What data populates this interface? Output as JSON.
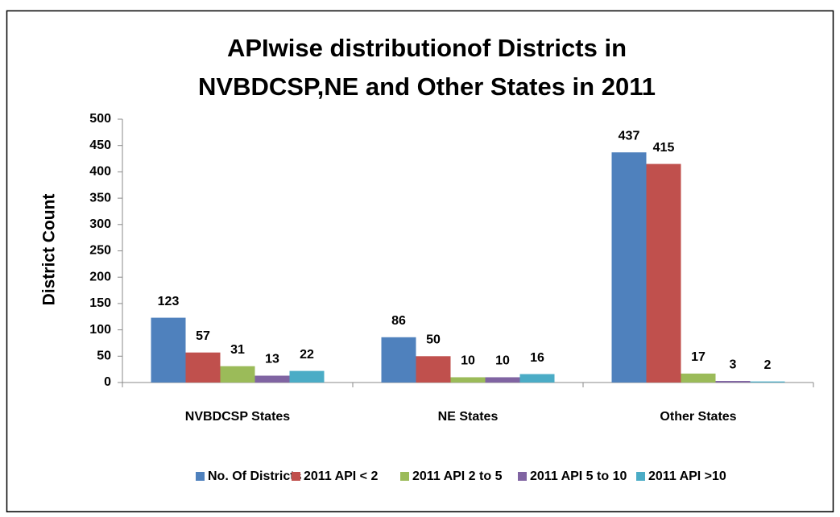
{
  "chart_data": {
    "type": "bar",
    "title": [
      "APIwise distributionof Districts in",
      "NVBDCSP,NE and Other States in 2011"
    ],
    "y_label": "District Count",
    "categories": [
      "NVBDCSP States",
      "NE States",
      "Other States"
    ],
    "series": [
      {
        "name": "No. Of Districts",
        "color": "#4f81bd",
        "values": [
          123,
          86,
          437
        ]
      },
      {
        "name": "2011 API < 2",
        "color": "#c0504d",
        "values": [
          57,
          50,
          415
        ]
      },
      {
        "name": "2011 API 2 to 5",
        "color": "#9bbb59",
        "values": [
          31,
          10,
          17
        ]
      },
      {
        "name": "2011 API 5 to 10",
        "color": "#8064a2",
        "values": [
          13,
          10,
          3
        ]
      },
      {
        "name": "2011 API >10",
        "color": "#4bacc6",
        "values": [
          22,
          16,
          2
        ]
      }
    ],
    "ylim": [
      0,
      500
    ],
    "yticks": [
      0,
      50,
      100,
      150,
      200,
      250,
      300,
      350,
      400,
      450,
      500
    ],
    "grid": false,
    "legend": "bottom"
  }
}
